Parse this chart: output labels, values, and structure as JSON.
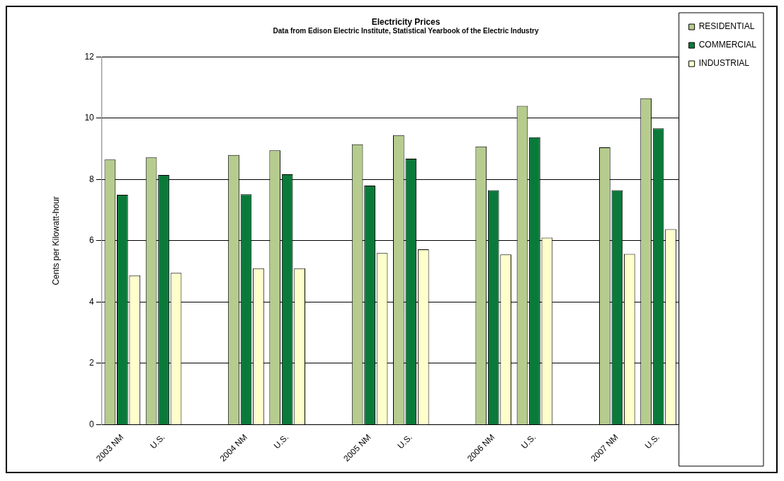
{
  "chart_data": {
    "type": "bar",
    "title": "Electricity Prices",
    "subtitle": "Data from Edison Electric Institute, Statistical Yearbook of the Electric Industry",
    "ylabel": "Cents per Kilowatt-hour",
    "categories": [
      "2003 NM",
      "U.S.",
      null,
      "2004 NM",
      "U.S.",
      null,
      "2005 NM",
      "U.S.",
      null,
      "2006 NM",
      "U.S.",
      null,
      "2007 NM",
      "U.S."
    ],
    "series": [
      {
        "name": "RESIDENTIAL",
        "color": "#b5cc8e",
        "values": [
          8.65,
          8.72,
          null,
          8.8,
          8.95,
          null,
          9.15,
          9.45,
          null,
          9.08,
          10.4,
          null,
          9.05,
          10.65
        ]
      },
      {
        "name": "COMMERCIAL",
        "color": "#0a7a3a",
        "values": [
          7.5,
          8.15,
          null,
          7.52,
          8.17,
          null,
          7.8,
          8.68,
          null,
          7.65,
          9.38,
          null,
          7.65,
          9.67
        ]
      },
      {
        "name": "INDUSTRIAL",
        "color": "#ffffcc",
        "values": [
          4.87,
          4.95,
          null,
          5.1,
          5.1,
          null,
          5.6,
          5.72,
          null,
          5.55,
          6.1,
          null,
          5.57,
          6.38
        ]
      }
    ],
    "ylim": [
      0,
      12
    ],
    "yticks": [
      0,
      2,
      4,
      6,
      8,
      10,
      12
    ],
    "grid": "y",
    "legend": "top right"
  }
}
